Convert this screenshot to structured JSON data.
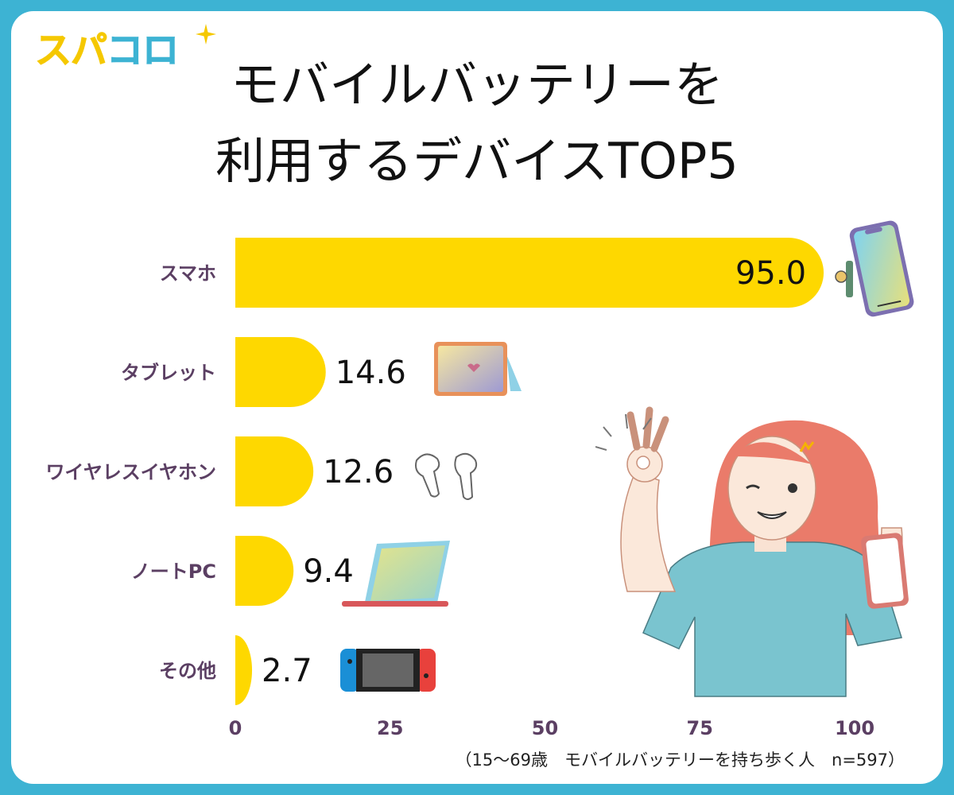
{
  "brand": {
    "logo_part1": "スパ",
    "logo_part2": "コロ"
  },
  "title_line1": "モバイルバッテリーを",
  "title_line2": "利用するデバイスTOP5",
  "footnote": "（15〜69歳　モバイルバッテリーを持ち歩く人　n=597）",
  "colors": {
    "bar": "#fed800",
    "category_label": "#5b3f63",
    "tick_label": "#5b3f63",
    "frame": "#3db3d3"
  },
  "chart_data": {
    "type": "bar",
    "orientation": "horizontal",
    "categories": [
      "スマホ",
      "タブレット",
      "ワイヤレスイヤホン",
      "ノートPC",
      "その他"
    ],
    "values": [
      95.0,
      14.6,
      12.6,
      9.4,
      2.7
    ],
    "value_labels": [
      "95.0",
      "14.6",
      "12.6",
      "9.4",
      "2.7"
    ],
    "xlim": [
      0,
      100
    ],
    "x_ticks": [
      0,
      25,
      50,
      75,
      100
    ],
    "grid": false,
    "category_icons": [
      "smartphone-icon",
      "tablet-icon",
      "earbuds-icon",
      "laptop-icon",
      "game-console-icon"
    ]
  }
}
